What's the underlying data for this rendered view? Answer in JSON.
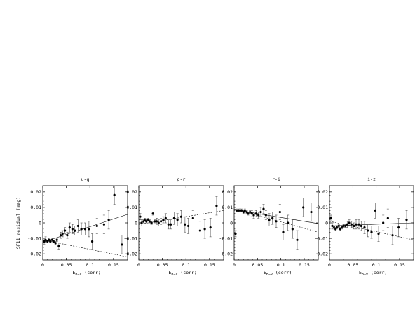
{
  "ylabel": "SF11 residual (mag)",
  "xlabel": "E",
  "xlabel_sub": "B−V",
  "xlabel_suffix": " (corr)",
  "chart_data": [
    {
      "type": "scatter",
      "title": "u-g",
      "xlim": [
        0,
        0.18
      ],
      "ylim": [
        -0.024,
        0.024
      ],
      "xticks": [
        "0",
        "0.05",
        "0.1",
        "0.15"
      ],
      "xtick_values": [
        0,
        0.05,
        0.1,
        0.15
      ],
      "yticks": [
        "0.02",
        "0.01",
        "0",
        "-0.01",
        "-0.02"
      ],
      "ytick_values": [
        0.02,
        0.01,
        0,
        -0.01,
        -0.02
      ],
      "points": [
        {
          "x": 0.003,
          "y": -0.012,
          "err": 0.002
        },
        {
          "x": 0.006,
          "y": -0.011,
          "err": 0.002
        },
        {
          "x": 0.01,
          "y": -0.012,
          "err": 0.001
        },
        {
          "x": 0.013,
          "y": -0.011,
          "err": 0.001
        },
        {
          "x": 0.016,
          "y": -0.012,
          "err": 0.001
        },
        {
          "x": 0.02,
          "y": -0.011,
          "err": 0.001
        },
        {
          "x": 0.023,
          "y": -0.012,
          "err": 0.001
        },
        {
          "x": 0.027,
          "y": -0.013,
          "err": 0.001
        },
        {
          "x": 0.03,
          "y": -0.011,
          "err": 0.001
        },
        {
          "x": 0.034,
          "y": -0.015,
          "err": 0.002
        },
        {
          "x": 0.038,
          "y": -0.008,
          "err": 0.002
        },
        {
          "x": 0.042,
          "y": -0.007,
          "err": 0.002
        },
        {
          "x": 0.047,
          "y": -0.005,
          "err": 0.002
        },
        {
          "x": 0.052,
          "y": -0.008,
          "err": 0.002
        },
        {
          "x": 0.057,
          "y": -0.003,
          "err": 0.003
        },
        {
          "x": 0.063,
          "y": -0.004,
          "err": 0.003
        },
        {
          "x": 0.068,
          "y": -0.005,
          "err": 0.003
        },
        {
          "x": 0.075,
          "y": -0.002,
          "err": 0.004
        },
        {
          "x": 0.082,
          "y": -0.004,
          "err": 0.004
        },
        {
          "x": 0.09,
          "y": -0.004,
          "err": 0.004
        },
        {
          "x": 0.098,
          "y": -0.004,
          "err": 0.005
        },
        {
          "x": 0.105,
          "y": -0.012,
          "err": 0.005
        },
        {
          "x": 0.115,
          "y": -0.002,
          "err": 0.005
        },
        {
          "x": 0.13,
          "y": -0.001,
          "err": 0.006
        },
        {
          "x": 0.14,
          "y": 0.002,
          "err": 0.006
        },
        {
          "x": 0.152,
          "y": 0.018,
          "err": 0.006
        },
        {
          "x": 0.168,
          "y": -0.014,
          "err": 0.006
        }
      ],
      "solid_line": [
        [
          0,
          -0.0125
        ],
        [
          0.18,
          0.0055
        ]
      ],
      "dashed_line": [
        [
          0,
          -0.011
        ],
        [
          0.18,
          -0.022
        ]
      ]
    },
    {
      "type": "scatter",
      "title": "g-r",
      "xlim": [
        0,
        0.18
      ],
      "ylim": [
        -0.024,
        0.024
      ],
      "xticks": [
        "0",
        "0.05",
        "0.1",
        "0.15"
      ],
      "xtick_values": [
        0,
        0.05,
        0.1,
        0.15
      ],
      "yticks": [
        "0.02",
        "0.01",
        "0",
        "-0.01",
        "-0.02"
      ],
      "ytick_values": [
        0.02,
        0.01,
        0,
        -0.01,
        -0.02
      ],
      "points": [
        {
          "x": 0.003,
          "y": 0.004,
          "err": 0.002
        },
        {
          "x": 0.006,
          "y": 0.0,
          "err": 0.002
        },
        {
          "x": 0.01,
          "y": 0.001,
          "err": 0.001
        },
        {
          "x": 0.013,
          "y": 0.002,
          "err": 0.001
        },
        {
          "x": 0.016,
          "y": 0.001,
          "err": 0.001
        },
        {
          "x": 0.02,
          "y": 0.002,
          "err": 0.001
        },
        {
          "x": 0.023,
          "y": 0.001,
          "err": 0.001
        },
        {
          "x": 0.027,
          "y": 0.0,
          "err": 0.001
        },
        {
          "x": 0.03,
          "y": 0.006,
          "err": 0.001
        },
        {
          "x": 0.034,
          "y": 0.001,
          "err": 0.001
        },
        {
          "x": 0.038,
          "y": 0.001,
          "err": 0.002
        },
        {
          "x": 0.042,
          "y": 0.0,
          "err": 0.002
        },
        {
          "x": 0.047,
          "y": 0.001,
          "err": 0.002
        },
        {
          "x": 0.052,
          "y": 0.002,
          "err": 0.002
        },
        {
          "x": 0.057,
          "y": 0.003,
          "err": 0.003
        },
        {
          "x": 0.063,
          "y": -0.001,
          "err": 0.003
        },
        {
          "x": 0.068,
          "y": -0.001,
          "err": 0.003
        },
        {
          "x": 0.075,
          "y": 0.003,
          "err": 0.004
        },
        {
          "x": 0.082,
          "y": 0.002,
          "err": 0.004
        },
        {
          "x": 0.09,
          "y": 0.004,
          "err": 0.004
        },
        {
          "x": 0.098,
          "y": -0.001,
          "err": 0.005
        },
        {
          "x": 0.105,
          "y": -0.002,
          "err": 0.005
        },
        {
          "x": 0.115,
          "y": 0.003,
          "err": 0.005
        },
        {
          "x": 0.13,
          "y": -0.005,
          "err": 0.006
        },
        {
          "x": 0.14,
          "y": -0.004,
          "err": 0.006
        },
        {
          "x": 0.152,
          "y": -0.003,
          "err": 0.006
        },
        {
          "x": 0.165,
          "y": 0.011,
          "err": 0.006
        }
      ],
      "solid_line": [
        [
          0,
          0.0012
        ],
        [
          0.18,
          0.0012
        ]
      ],
      "dashed_line": [
        [
          0,
          -0.001
        ],
        [
          0.18,
          0.008
        ]
      ]
    },
    {
      "type": "scatter",
      "title": "r-i",
      "xlim": [
        0,
        0.18
      ],
      "ylim": [
        -0.024,
        0.024
      ],
      "xticks": [
        "0",
        "0.05",
        "0.1",
        "0.15"
      ],
      "xtick_values": [
        0,
        0.05,
        0.1,
        0.15
      ],
      "yticks": [
        "0.02",
        "0.01",
        "0",
        "-0.01",
        "-0.02"
      ],
      "ytick_values": [
        0.02,
        0.01,
        0,
        -0.01,
        -0.02
      ],
      "points": [
        {
          "x": 0.003,
          "y": -0.007,
          "err": 0.002
        },
        {
          "x": 0.006,
          "y": 0.008,
          "err": 0.001
        },
        {
          "x": 0.01,
          "y": 0.008,
          "err": 0.001
        },
        {
          "x": 0.013,
          "y": 0.008,
          "err": 0.001
        },
        {
          "x": 0.016,
          "y": 0.008,
          "err": 0.001
        },
        {
          "x": 0.02,
          "y": 0.007,
          "err": 0.001
        },
        {
          "x": 0.023,
          "y": 0.008,
          "err": 0.001
        },
        {
          "x": 0.027,
          "y": 0.007,
          "err": 0.001
        },
        {
          "x": 0.03,
          "y": 0.006,
          "err": 0.001
        },
        {
          "x": 0.034,
          "y": 0.007,
          "err": 0.001
        },
        {
          "x": 0.038,
          "y": 0.006,
          "err": 0.002
        },
        {
          "x": 0.042,
          "y": 0.005,
          "err": 0.002
        },
        {
          "x": 0.047,
          "y": 0.006,
          "err": 0.002
        },
        {
          "x": 0.052,
          "y": 0.005,
          "err": 0.002
        },
        {
          "x": 0.057,
          "y": 0.007,
          "err": 0.003
        },
        {
          "x": 0.063,
          "y": 0.009,
          "err": 0.003
        },
        {
          "x": 0.068,
          "y": 0.005,
          "err": 0.003
        },
        {
          "x": 0.075,
          "y": 0.002,
          "err": 0.004
        },
        {
          "x": 0.082,
          "y": 0.003,
          "err": 0.004
        },
        {
          "x": 0.09,
          "y": 0.001,
          "err": 0.004
        },
        {
          "x": 0.098,
          "y": 0.007,
          "err": 0.005
        },
        {
          "x": 0.105,
          "y": -0.006,
          "err": 0.005
        },
        {
          "x": 0.115,
          "y": 0.0,
          "err": 0.005
        },
        {
          "x": 0.125,
          "y": -0.004,
          "err": 0.006
        },
        {
          "x": 0.135,
          "y": -0.011,
          "err": 0.006
        },
        {
          "x": 0.148,
          "y": 0.01,
          "err": 0.006
        },
        {
          "x": 0.165,
          "y": 0.007,
          "err": 0.006
        }
      ],
      "solid_line": [
        [
          0,
          0.0085
        ],
        [
          0.18,
          -0.0005
        ]
      ],
      "dashed_line": [
        [
          0,
          0.009
        ],
        [
          0.18,
          -0.006
        ]
      ]
    },
    {
      "type": "scatter",
      "title": "i-z",
      "xlim": [
        0,
        0.18
      ],
      "ylim": [
        -0.024,
        0.024
      ],
      "xticks": [
        "0",
        "0.05",
        "0.1",
        "0.15"
      ],
      "xtick_values": [
        0,
        0.05,
        0.1,
        0.15
      ],
      "yticks": [
        "0.02",
        "0.01",
        "0",
        "-0.01",
        "-0.02"
      ],
      "ytick_values": [
        0.02,
        0.01,
        0,
        -0.01,
        -0.02
      ],
      "points": [
        {
          "x": 0.003,
          "y": 0.003,
          "err": 0.002
        },
        {
          "x": 0.006,
          "y": -0.002,
          "err": 0.002
        },
        {
          "x": 0.01,
          "y": -0.003,
          "err": 0.001
        },
        {
          "x": 0.013,
          "y": -0.004,
          "err": 0.001
        },
        {
          "x": 0.016,
          "y": -0.003,
          "err": 0.001
        },
        {
          "x": 0.02,
          "y": -0.002,
          "err": 0.001
        },
        {
          "x": 0.023,
          "y": -0.004,
          "err": 0.001
        },
        {
          "x": 0.027,
          "y": -0.003,
          "err": 0.001
        },
        {
          "x": 0.03,
          "y": -0.002,
          "err": 0.001
        },
        {
          "x": 0.034,
          "y": -0.002,
          "err": 0.001
        },
        {
          "x": 0.038,
          "y": -0.001,
          "err": 0.002
        },
        {
          "x": 0.042,
          "y": 0.0,
          "err": 0.002
        },
        {
          "x": 0.047,
          "y": -0.001,
          "err": 0.002
        },
        {
          "x": 0.052,
          "y": -0.002,
          "err": 0.002
        },
        {
          "x": 0.057,
          "y": -0.001,
          "err": 0.003
        },
        {
          "x": 0.063,
          "y": -0.001,
          "err": 0.003
        },
        {
          "x": 0.068,
          "y": -0.002,
          "err": 0.003
        },
        {
          "x": 0.075,
          "y": -0.003,
          "err": 0.004
        },
        {
          "x": 0.082,
          "y": -0.005,
          "err": 0.004
        },
        {
          "x": 0.09,
          "y": -0.006,
          "err": 0.004
        },
        {
          "x": 0.098,
          "y": 0.008,
          "err": 0.005
        },
        {
          "x": 0.105,
          "y": -0.007,
          "err": 0.005
        },
        {
          "x": 0.115,
          "y": 0.0,
          "err": 0.005
        },
        {
          "x": 0.125,
          "y": 0.003,
          "err": 0.006
        },
        {
          "x": 0.135,
          "y": -0.008,
          "err": 0.006
        },
        {
          "x": 0.148,
          "y": -0.003,
          "err": 0.006
        },
        {
          "x": 0.165,
          "y": 0.002,
          "err": 0.006
        }
      ],
      "solid_line": [
        [
          0,
          -0.002
        ],
        [
          0.18,
          0.0
        ]
      ],
      "dashed_line": [
        [
          0,
          0.001
        ],
        [
          0.18,
          -0.011
        ]
      ]
    }
  ]
}
